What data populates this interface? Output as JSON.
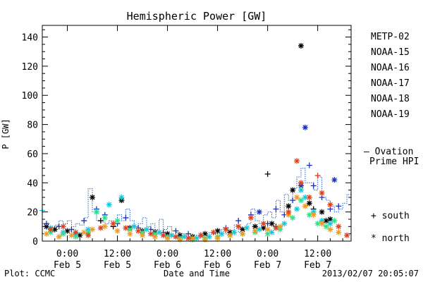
{
  "colors": {
    "METP-02": "#000000",
    "NOAA-15": "#1a2fbf",
    "NOAA-16": "#16c8de",
    "NOAA-17": "#2ee08a",
    "NOAA-18": "#f39a1b",
    "NOAA-19": "#e0401a",
    "ovation": "#1a5fd6"
  },
  "footer": {
    "left": "Plot: CCMC",
    "right": "2013/02/07 20:05:07"
  },
  "chart_data": {
    "type": "scatter",
    "title": "Hemispheric Power [GW]",
    "ylabel": "P [GW]",
    "xlabel": "Date and Time",
    "x_unit": "hours from 2013-02-05 00:00 UTC",
    "xlim": [
      -6,
      68
    ],
    "ylim": [
      0,
      148
    ],
    "yticks": [
      0,
      20,
      40,
      60,
      80,
      100,
      120,
      140
    ],
    "xticks": [
      {
        "x": 0,
        "time": "0:00",
        "date": "Feb 5"
      },
      {
        "x": 12,
        "time": "12:00",
        "date": "Feb 5"
      },
      {
        "x": 24,
        "time": "0:00",
        "date": "Feb 6"
      },
      {
        "x": 36,
        "time": "12:00",
        "date": "Feb 6"
      },
      {
        "x": 48,
        "time": "0:00",
        "date": "Feb 7"
      },
      {
        "x": 60,
        "time": "12:00",
        "date": "Feb 7"
      }
    ],
    "legend_position": "right",
    "marker_legend": [
      {
        "symbol": "+",
        "label": "south"
      },
      {
        "symbol": "*",
        "label": "north"
      }
    ],
    "ovation": {
      "label_line1": "— Ovation",
      "label_line2": "Prime HPI",
      "points": [
        [
          -6,
          12
        ],
        [
          -5,
          10
        ],
        [
          -4,
          8
        ],
        [
          -3,
          11
        ],
        [
          -2,
          14
        ],
        [
          -1,
          12
        ],
        [
          0,
          14
        ],
        [
          1,
          10
        ],
        [
          2,
          12
        ],
        [
          3,
          11
        ],
        [
          4,
          16
        ],
        [
          5,
          36
        ],
        [
          6,
          20
        ],
        [
          7,
          14
        ],
        [
          8,
          13
        ],
        [
          9,
          12
        ],
        [
          10,
          14
        ],
        [
          11,
          10
        ],
        [
          12,
          18
        ],
        [
          13,
          14
        ],
        [
          14,
          22
        ],
        [
          15,
          14
        ],
        [
          16,
          10
        ],
        [
          17,
          12
        ],
        [
          18,
          16
        ],
        [
          19,
          10
        ],
        [
          20,
          12
        ],
        [
          21,
          8
        ],
        [
          22,
          15
        ],
        [
          23,
          8
        ],
        [
          24,
          10
        ],
        [
          25,
          7
        ],
        [
          26,
          6
        ],
        [
          27,
          5
        ],
        [
          28,
          4
        ],
        [
          29,
          3
        ],
        [
          30,
          4
        ],
        [
          31,
          2
        ],
        [
          32,
          3
        ],
        [
          33,
          4
        ],
        [
          34,
          6
        ],
        [
          35,
          5
        ],
        [
          36,
          8
        ],
        [
          37,
          6
        ],
        [
          38,
          5
        ],
        [
          39,
          7
        ],
        [
          40,
          11
        ],
        [
          41,
          6
        ],
        [
          42,
          8
        ],
        [
          43,
          12
        ],
        [
          44,
          22
        ],
        [
          45,
          14
        ],
        [
          46,
          12
        ],
        [
          47,
          18
        ],
        [
          48,
          20
        ],
        [
          49,
          16
        ],
        [
          50,
          28
        ],
        [
          51,
          20
        ],
        [
          52,
          32
        ],
        [
          53,
          28
        ],
        [
          54,
          36
        ],
        [
          55,
          44
        ],
        [
          56,
          50
        ],
        [
          57,
          40
        ],
        [
          58,
          40
        ],
        [
          59,
          35
        ],
        [
          60,
          44
        ],
        [
          61,
          30
        ],
        [
          62,
          28
        ],
        [
          63,
          24
        ],
        [
          64,
          20
        ],
        [
          65,
          22
        ],
        [
          66,
          26
        ],
        [
          67,
          32
        ],
        [
          68,
          32
        ]
      ]
    },
    "series": [
      {
        "name": "METP-02",
        "points": [
          [
            -5,
            10,
            "*"
          ],
          [
            -3,
            8,
            "*"
          ],
          [
            0,
            7,
            "*"
          ],
          [
            3,
            4,
            "*"
          ],
          [
            6,
            30,
            "*"
          ],
          [
            8,
            14,
            "+"
          ],
          [
            11,
            10,
            "+"
          ],
          [
            13,
            28,
            "*"
          ],
          [
            15,
            9,
            "*"
          ],
          [
            18,
            7,
            "*"
          ],
          [
            21,
            6,
            "*"
          ],
          [
            24,
            5,
            "*"
          ],
          [
            27,
            4,
            "*"
          ],
          [
            30,
            3,
            "*"
          ],
          [
            33,
            5,
            "*"
          ],
          [
            36,
            7,
            "*"
          ],
          [
            39,
            6,
            "*"
          ],
          [
            42,
            8,
            "*"
          ],
          [
            45,
            10,
            "*"
          ],
          [
            47,
            9,
            "*"
          ],
          [
            48,
            46,
            "+"
          ],
          [
            49,
            12,
            "*"
          ],
          [
            50,
            10,
            "+"
          ],
          [
            53,
            24,
            "*"
          ],
          [
            54,
            35,
            "*"
          ],
          [
            56,
            134,
            "*"
          ],
          [
            58,
            26,
            "*"
          ],
          [
            59,
            22,
            "+"
          ],
          [
            61,
            20,
            "*"
          ],
          [
            62,
            14,
            "*"
          ],
          [
            63,
            15,
            "*"
          ]
        ]
      },
      {
        "name": "NOAA-15",
        "points": [
          [
            -5,
            12,
            "+"
          ],
          [
            -2,
            10,
            "+"
          ],
          [
            1,
            8,
            "+"
          ],
          [
            4,
            14,
            "+"
          ],
          [
            7,
            22,
            "+"
          ],
          [
            9,
            18,
            "+"
          ],
          [
            12,
            12,
            "+"
          ],
          [
            14,
            16,
            "+"
          ],
          [
            17,
            9,
            "+"
          ],
          [
            20,
            8,
            "+"
          ],
          [
            23,
            6,
            "+"
          ],
          [
            26,
            7,
            "+"
          ],
          [
            29,
            5,
            "+"
          ],
          [
            32,
            4,
            "+"
          ],
          [
            35,
            6,
            "+"
          ],
          [
            38,
            9,
            "+"
          ],
          [
            41,
            14,
            "+"
          ],
          [
            44,
            18,
            "+"
          ],
          [
            46,
            20,
            "*"
          ],
          [
            48,
            12,
            "+"
          ],
          [
            50,
            22,
            "+"
          ],
          [
            52,
            18,
            "+"
          ],
          [
            54,
            28,
            "+"
          ],
          [
            56,
            38,
            "*"
          ],
          [
            57,
            78,
            "*"
          ],
          [
            58,
            52,
            "+"
          ],
          [
            59,
            38,
            "+"
          ],
          [
            61,
            30,
            "+"
          ],
          [
            63,
            22,
            "+"
          ],
          [
            64,
            42,
            "*"
          ],
          [
            65,
            24,
            "+"
          ]
        ]
      },
      {
        "name": "NOAA-16",
        "points": [
          [
            -6,
            21,
            "+"
          ],
          [
            -4,
            9,
            "*"
          ],
          [
            -1,
            6,
            "*"
          ],
          [
            2,
            5,
            "*"
          ],
          [
            5,
            8,
            "*"
          ],
          [
            7,
            20,
            "*"
          ],
          [
            10,
            25,
            "*"
          ],
          [
            13,
            30,
            "*"
          ],
          [
            16,
            10,
            "*"
          ],
          [
            19,
            8,
            "*"
          ],
          [
            22,
            6,
            "*"
          ],
          [
            25,
            4,
            "*"
          ],
          [
            28,
            3,
            "*"
          ],
          [
            31,
            2,
            "*"
          ],
          [
            34,
            3,
            "*"
          ],
          [
            37,
            5,
            "*"
          ],
          [
            40,
            6,
            "*"
          ],
          [
            43,
            9,
            "*"
          ],
          [
            46,
            8,
            "*"
          ],
          [
            49,
            6,
            "*"
          ],
          [
            52,
            12,
            "*"
          ],
          [
            55,
            22,
            "*"
          ],
          [
            56,
            35,
            "*"
          ],
          [
            57,
            30,
            "*"
          ],
          [
            59,
            20,
            "*"
          ],
          [
            61,
            14,
            "*"
          ],
          [
            63,
            12,
            "*"
          ]
        ]
      },
      {
        "name": "NOAA-17",
        "points": [
          [
            -4,
            6,
            "*"
          ],
          [
            -1,
            5,
            "*"
          ],
          [
            2,
            3,
            "*"
          ],
          [
            5,
            6,
            "*"
          ],
          [
            7,
            20,
            "*"
          ],
          [
            9,
            16,
            "*"
          ],
          [
            12,
            14,
            "*"
          ],
          [
            15,
            8,
            "*"
          ],
          [
            18,
            6,
            "*"
          ],
          [
            21,
            5,
            "*"
          ],
          [
            24,
            3,
            "*"
          ],
          [
            27,
            2,
            "*"
          ],
          [
            30,
            1,
            "*"
          ],
          [
            33,
            2,
            "*"
          ],
          [
            36,
            3,
            "*"
          ],
          [
            39,
            4,
            "*"
          ],
          [
            42,
            5,
            "*"
          ],
          [
            45,
            6,
            "*"
          ],
          [
            48,
            5,
            "*"
          ],
          [
            51,
            8,
            "*"
          ],
          [
            54,
            16,
            "*"
          ],
          [
            56,
            28,
            "*"
          ],
          [
            58,
            18,
            "*"
          ],
          [
            60,
            12,
            "*"
          ],
          [
            62,
            10,
            "*"
          ],
          [
            64,
            14,
            "*"
          ]
        ]
      },
      {
        "name": "NOAA-18",
        "points": [
          [
            -5,
            5,
            "*"
          ],
          [
            -2,
            3,
            "*"
          ],
          [
            1,
            4,
            "*"
          ],
          [
            4,
            6,
            "*"
          ],
          [
            6,
            8,
            "*"
          ],
          [
            9,
            10,
            "*"
          ],
          [
            12,
            7,
            "*"
          ],
          [
            15,
            5,
            "*"
          ],
          [
            18,
            4,
            "*"
          ],
          [
            21,
            3,
            "*"
          ],
          [
            24,
            2,
            "*"
          ],
          [
            27,
            1,
            "*"
          ],
          [
            30,
            2,
            "*"
          ],
          [
            33,
            1,
            "*"
          ],
          [
            36,
            2,
            "*"
          ],
          [
            39,
            4,
            "*"
          ],
          [
            42,
            5,
            "*"
          ],
          [
            45,
            7,
            "*"
          ],
          [
            48,
            8,
            "*"
          ],
          [
            51,
            10,
            "*"
          ],
          [
            53,
            18,
            "*"
          ],
          [
            55,
            30,
            "*"
          ],
          [
            57,
            24,
            "*"
          ],
          [
            59,
            18,
            "*"
          ],
          [
            61,
            12,
            "*"
          ],
          [
            63,
            8,
            "*"
          ],
          [
            65,
            6,
            "*"
          ]
        ]
      },
      {
        "name": "NOAA-19",
        "points": [
          [
            -4,
            8,
            "*"
          ],
          [
            -1,
            10,
            "*"
          ],
          [
            2,
            6,
            "*"
          ],
          [
            5,
            4,
            "*"
          ],
          [
            8,
            9,
            "*"
          ],
          [
            11,
            12,
            "*"
          ],
          [
            14,
            9,
            "*"
          ],
          [
            17,
            7,
            "*"
          ],
          [
            20,
            5,
            "*"
          ],
          [
            23,
            4,
            "*"
          ],
          [
            26,
            3,
            "*"
          ],
          [
            29,
            2,
            "*"
          ],
          [
            32,
            4,
            "*"
          ],
          [
            35,
            6,
            "*"
          ],
          [
            38,
            8,
            "*"
          ],
          [
            41,
            10,
            "*"
          ],
          [
            44,
            16,
            "*"
          ],
          [
            47,
            12,
            "*"
          ],
          [
            50,
            9,
            "*"
          ],
          [
            53,
            20,
            "*"
          ],
          [
            55,
            55,
            "*"
          ],
          [
            56,
            40,
            "*"
          ],
          [
            58,
            30,
            "*"
          ],
          [
            60,
            45,
            "+"
          ],
          [
            61,
            33,
            "*"
          ],
          [
            63,
            25,
            "*"
          ],
          [
            65,
            10,
            "*"
          ],
          [
            67,
            4,
            "*"
          ]
        ]
      }
    ]
  }
}
